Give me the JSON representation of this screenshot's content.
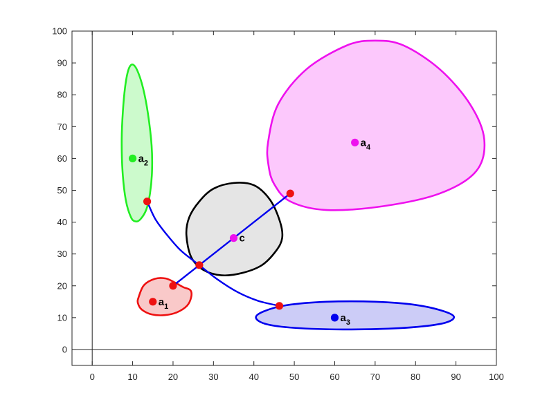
{
  "chart_data": {
    "type": "diagram",
    "xlim": [
      -5,
      100
    ],
    "ylim": [
      -5,
      100
    ],
    "x_ticks": [
      "0",
      "10",
      "20",
      "30",
      "40",
      "50",
      "60",
      "70",
      "80",
      "90",
      "100"
    ],
    "y_ticks": [
      "0",
      "10",
      "20",
      "30",
      "40",
      "50",
      "60",
      "70",
      "80",
      "90",
      "100"
    ],
    "x_tick_values": [
      0,
      10,
      20,
      30,
      40,
      50,
      60,
      70,
      80,
      90,
      100
    ],
    "y_tick_values": [
      0,
      10,
      20,
      30,
      40,
      50,
      60,
      70,
      80,
      90,
      100
    ],
    "regions": [
      {
        "id": "region-a1",
        "stroke": "#ee1111",
        "fill": "#f9c9c9",
        "outline": [
          [
            11.5,
            16.5
          ],
          [
            12.8,
            20.2
          ],
          [
            15.5,
            22.2
          ],
          [
            18.2,
            22.3
          ],
          [
            20.5,
            21.0
          ],
          [
            22.5,
            19.6
          ],
          [
            24.3,
            18.6
          ],
          [
            24.5,
            16.5
          ],
          [
            23.5,
            13.8
          ],
          [
            21.0,
            11.7
          ],
          [
            18.0,
            10.8
          ],
          [
            14.8,
            11.0
          ],
          [
            12.3,
            12.5
          ],
          [
            11.3,
            14.6
          ]
        ]
      },
      {
        "id": "region-a2",
        "stroke": "#22ee22",
        "fill": "#ccfacc",
        "outline": [
          [
            10.0,
            89.5
          ],
          [
            11.2,
            87.5
          ],
          [
            12.6,
            82.0
          ],
          [
            13.8,
            74.0
          ],
          [
            14.7,
            64.0
          ],
          [
            14.8,
            56.0
          ],
          [
            14.3,
            49.0
          ],
          [
            13.4,
            44.0
          ],
          [
            12.0,
            41.0
          ],
          [
            10.8,
            40.2
          ],
          [
            9.6,
            41.5
          ],
          [
            8.3,
            47.0
          ],
          [
            7.5,
            56.0
          ],
          [
            7.3,
            66.0
          ],
          [
            7.6,
            75.0
          ],
          [
            8.2,
            83.0
          ],
          [
            9.0,
            88.0
          ]
        ]
      },
      {
        "id": "region-a3",
        "stroke": "#0000ee",
        "fill": "#ccccf7",
        "outline": [
          [
            40.5,
            10.0
          ],
          [
            42.5,
            12.0
          ],
          [
            48.0,
            13.9
          ],
          [
            58.0,
            15.0
          ],
          [
            70.0,
            15.0
          ],
          [
            80.0,
            14.0
          ],
          [
            87.0,
            12.0
          ],
          [
            89.5,
            10.0
          ],
          [
            86.0,
            8.0
          ],
          [
            76.0,
            6.7
          ],
          [
            62.0,
            6.3
          ],
          [
            50.0,
            6.8
          ],
          [
            43.0,
            8.0
          ]
        ]
      },
      {
        "id": "region-a4",
        "stroke": "#ee11ee",
        "fill": "#fcc8fc",
        "outline": [
          [
            43.5,
            65.0
          ],
          [
            46.0,
            77.0
          ],
          [
            53.0,
            88.0
          ],
          [
            63.0,
            95.5
          ],
          [
            70.0,
            97.0
          ],
          [
            77.0,
            95.5
          ],
          [
            86.0,
            88.0
          ],
          [
            93.5,
            77.0
          ],
          [
            97.0,
            66.0
          ],
          [
            95.0,
            56.0
          ],
          [
            86.0,
            49.0
          ],
          [
            72.0,
            45.0
          ],
          [
            58.0,
            43.8
          ],
          [
            49.0,
            46.5
          ],
          [
            45.0,
            52.0
          ],
          [
            43.6,
            58.0
          ]
        ]
      },
      {
        "id": "region-c",
        "stroke": "#000000",
        "fill": "#e5e5e5",
        "outline": [
          [
            23.3,
            36.0
          ],
          [
            24.0,
            41.5
          ],
          [
            26.5,
            46.5
          ],
          [
            30.0,
            50.5
          ],
          [
            35.0,
            52.3
          ],
          [
            40.0,
            51.6
          ],
          [
            44.0,
            47.0
          ],
          [
            46.5,
            40.0
          ],
          [
            47.0,
            35.0
          ],
          [
            45.5,
            31.0
          ],
          [
            42.0,
            26.5
          ],
          [
            37.0,
            24.0
          ],
          [
            32.0,
            23.3
          ],
          [
            27.5,
            25.0
          ],
          [
            24.5,
            29.0
          ]
        ]
      }
    ],
    "connectors": [
      {
        "id": "segment-a1",
        "color": "#0000ee",
        "points": [
          [
            26.5,
            26.5
          ],
          [
            20.0,
            20.0
          ]
        ]
      },
      {
        "id": "segment-a4",
        "color": "#0000ee",
        "points": [
          [
            26.5,
            26.5
          ],
          [
            49.0,
            49.0
          ]
        ]
      },
      {
        "id": "arc-a2",
        "color": "#0000ee",
        "points": [
          [
            13.6,
            46.5
          ],
          [
            15.6,
            41.0
          ],
          [
            18.5,
            36.0
          ],
          [
            22.0,
            31.0
          ],
          [
            26.5,
            26.5
          ]
        ]
      },
      {
        "id": "arc-a3",
        "color": "#0000ee",
        "points": [
          [
            26.5,
            26.5
          ],
          [
            31.0,
            22.0
          ],
          [
            36.0,
            18.0
          ],
          [
            41.0,
            15.3
          ],
          [
            46.3,
            13.7
          ]
        ]
      }
    ],
    "junctions": [
      [
        13.6,
        46.5
      ],
      [
        26.5,
        26.5
      ],
      [
        20.0,
        20.0
      ],
      [
        49.0,
        49.0
      ],
      [
        46.3,
        13.7
      ]
    ],
    "junction_color": "#ee1111",
    "centers": [
      {
        "id": "a1",
        "x": 15,
        "y": 15,
        "color": "#ee1111",
        "label": "a",
        "sub": "1"
      },
      {
        "id": "a2",
        "x": 10,
        "y": 60,
        "color": "#22ee22",
        "label": "a",
        "sub": "2"
      },
      {
        "id": "a3",
        "x": 60,
        "y": 10,
        "color": "#0000ee",
        "label": "a",
        "sub": "3"
      },
      {
        "id": "a4",
        "x": 65,
        "y": 65,
        "color": "#ee11ee",
        "label": "a",
        "sub": "4"
      },
      {
        "id": "c",
        "x": 35,
        "y": 35,
        "color": "#ee11ee",
        "label": "c",
        "sub": ""
      }
    ]
  }
}
